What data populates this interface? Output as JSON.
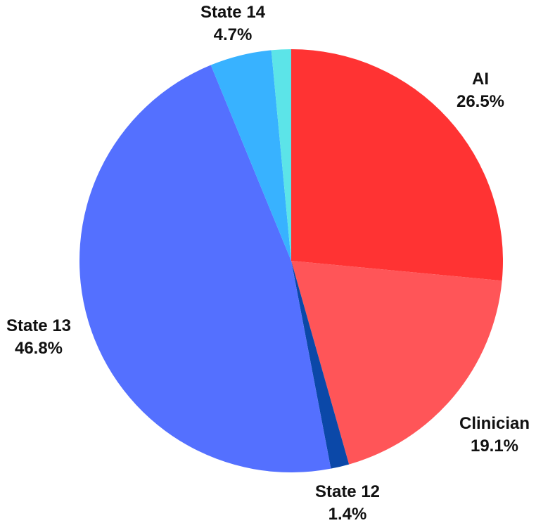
{
  "chart_data": {
    "type": "pie",
    "title": "",
    "start_angle_deg": 0,
    "direction": "clockwise",
    "slices": [
      {
        "label": "AI",
        "percent_label": "26.5%",
        "value": 26.5,
        "color": "#ff3333"
      },
      {
        "label": "Clinician",
        "percent_label": "19.1%",
        "value": 19.1,
        "color": "#ff5558"
      },
      {
        "label": "State 12",
        "percent_label": "1.4%",
        "value": 1.4,
        "color": "#0b48a8"
      },
      {
        "label": "State 13",
        "percent_label": "46.8%",
        "value": 46.8,
        "color": "#5470ff"
      },
      {
        "label": "State 14",
        "percent_label": "4.7%",
        "value": 4.7,
        "color": "#38b2ff"
      },
      {
        "label": "",
        "percent_label": "",
        "value": 1.5,
        "color": "#5ce4e8"
      }
    ]
  }
}
